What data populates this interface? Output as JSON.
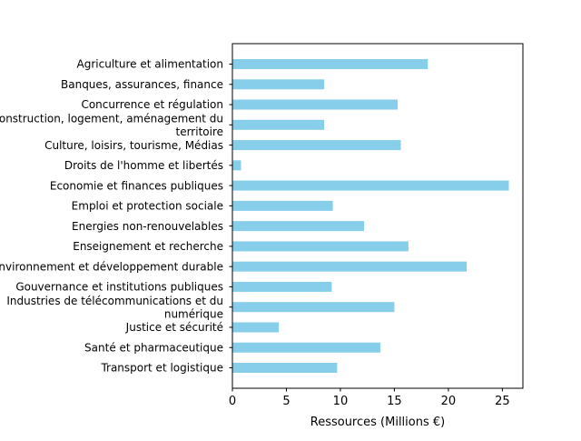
{
  "chart_data": {
    "type": "bar",
    "orientation": "horizontal",
    "title": "",
    "xlabel": "Ressources (Millions €)",
    "ylabel": "",
    "xlim": [
      0,
      26.9
    ],
    "xticks": [
      0,
      5,
      10,
      15,
      20,
      25
    ],
    "grid": false,
    "bar_color": "#87CEEB",
    "categories": [
      [
        "Agriculture et alimentation"
      ],
      [
        "Banques, assurances, finance"
      ],
      [
        "Concurrence et régulation"
      ],
      [
        "Construction, logement, aménagement du",
        "territoire"
      ],
      [
        "Culture, loisirs, tourisme, Médias"
      ],
      [
        "Droits de l'homme et libertés"
      ],
      [
        "Economie et finances publiques"
      ],
      [
        "Emploi et protection sociale"
      ],
      [
        "Energies non-renouvelables"
      ],
      [
        "Enseignement et recherche"
      ],
      [
        "Environnement et développement durable"
      ],
      [
        "Gouvernance et institutions publiques"
      ],
      [
        "Industries de télécommunications et du",
        "numérique"
      ],
      [
        "Justice et sécurité"
      ],
      [
        "Santé et pharmaceutique"
      ],
      [
        "Transport et logistique"
      ]
    ],
    "values": [
      18.1,
      8.5,
      15.3,
      8.5,
      15.6,
      0.8,
      25.6,
      9.3,
      12.2,
      16.3,
      21.7,
      9.2,
      15.0,
      4.3,
      13.7,
      9.7
    ]
  }
}
